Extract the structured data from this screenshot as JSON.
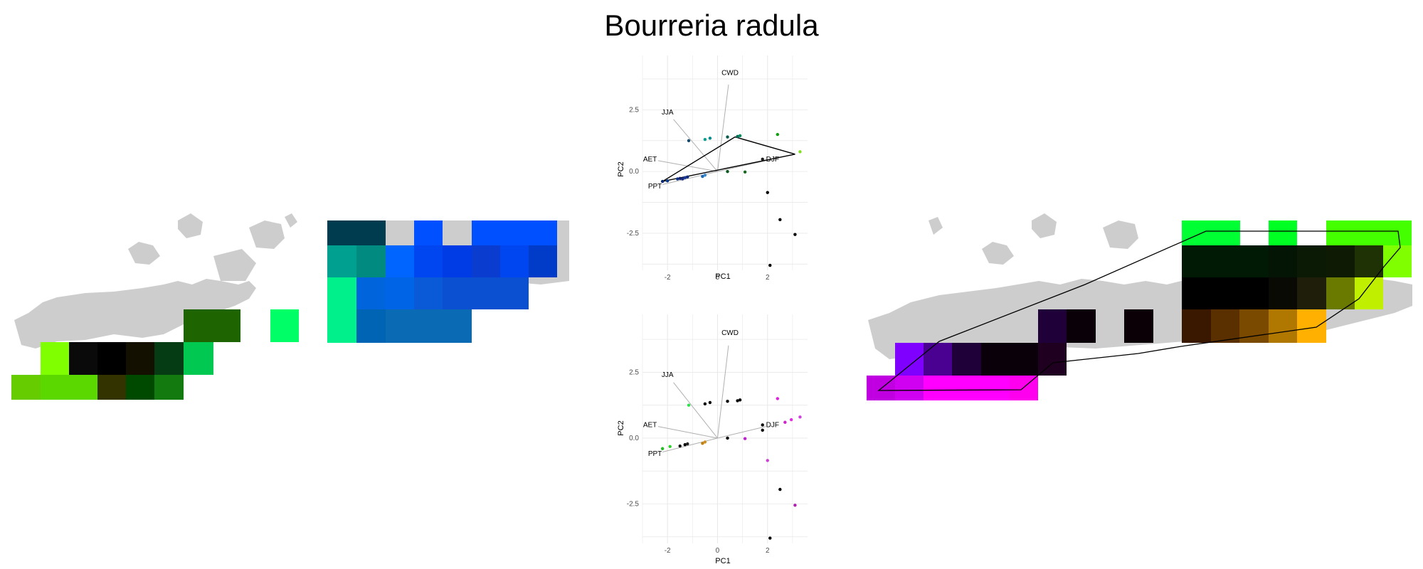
{
  "title": "Bourreria radula",
  "chart_data": [
    {
      "type": "scatter",
      "panel": "pca-top",
      "xlabel": "PC1",
      "ylabel": "PC2",
      "xlim": [
        -3,
        3.6
      ],
      "ylim": [
        -4,
        4.7
      ],
      "x_ticks": [
        -2,
        0,
        2
      ],
      "y_ticks": [
        2.5,
        0.0,
        -2.5
      ],
      "x_tick_labels": [
        "-2",
        "0",
        "2"
      ],
      "y_tick_labels": [
        "2.5",
        "0.0",
        "-2.5"
      ],
      "grid": true,
      "vectors": [
        {
          "label": "CWD",
          "x": 0.5,
          "y": 4.0
        },
        {
          "label": "JJA",
          "x": -2.0,
          "y": 2.4
        },
        {
          "label": "AET",
          "x": -2.7,
          "y": 0.5
        },
        {
          "label": "PPT",
          "x": -2.5,
          "y": -0.6
        },
        {
          "label": "DJF",
          "x": 2.2,
          "y": 0.5
        }
      ],
      "hull": [
        [
          -2.2,
          -0.4
        ],
        [
          0.7,
          1.4
        ],
        [
          3.1,
          0.7
        ]
      ],
      "points": [
        {
          "x": -2.2,
          "y": -0.4,
          "color": "#0a2a7a"
        },
        {
          "x": -2.0,
          "y": -0.38,
          "color": "#0a3a8a"
        },
        {
          "x": -1.6,
          "y": -0.3,
          "color": "#0b2f88"
        },
        {
          "x": -1.5,
          "y": -0.28,
          "color": "#111f6b"
        },
        {
          "x": -1.4,
          "y": -0.3,
          "color": "#152a80"
        },
        {
          "x": -1.3,
          "y": -0.25,
          "color": "#1a3a9a"
        },
        {
          "x": -1.2,
          "y": -0.22,
          "color": "#0e2a7a"
        },
        {
          "x": -0.6,
          "y": -0.2,
          "color": "#1e6ab8"
        },
        {
          "x": -0.5,
          "y": -0.15,
          "color": "#3a8ad0"
        },
        {
          "x": -1.15,
          "y": 1.25,
          "color": "#1a4a6a"
        },
        {
          "x": -0.5,
          "y": 1.3,
          "color": "#0aa090"
        },
        {
          "x": -0.3,
          "y": 1.35,
          "color": "#008a8a"
        },
        {
          "x": 0.4,
          "y": 1.4,
          "color": "#005a4a"
        },
        {
          "x": 0.8,
          "y": 1.42,
          "color": "#006a5a"
        },
        {
          "x": 0.9,
          "y": 1.45,
          "color": "#00875a"
        },
        {
          "x": 0.4,
          "y": 0.0,
          "color": "#0d5a20"
        },
        {
          "x": 1.1,
          "y": -0.02,
          "color": "#166a20"
        },
        {
          "x": 2.4,
          "y": 1.5,
          "color": "#10a010"
        },
        {
          "x": 1.8,
          "y": 0.5,
          "color": "#1a1a1a"
        },
        {
          "x": 3.3,
          "y": 0.8,
          "color": "#7fe020"
        },
        {
          "x": 2.0,
          "y": -0.85,
          "color": "#000000"
        },
        {
          "x": 2.5,
          "y": -1.95,
          "color": "#000000"
        },
        {
          "x": 3.1,
          "y": -2.55,
          "color": "#000000"
        },
        {
          "x": 2.1,
          "y": -3.8,
          "color": "#000000"
        }
      ]
    },
    {
      "type": "scatter",
      "panel": "pca-bottom",
      "xlabel": "PC1",
      "ylabel": "PC2",
      "xlim": [
        -3,
        3.6
      ],
      "ylim": [
        -4,
        4.7
      ],
      "x_ticks": [
        -2,
        0,
        2
      ],
      "y_ticks": [
        2.5,
        0.0,
        -2.5
      ],
      "x_tick_labels": [
        "-2",
        "0",
        "2"
      ],
      "y_tick_labels": [
        "2.5",
        "0.0",
        "-2.5"
      ],
      "grid": true,
      "vectors": [
        {
          "label": "CWD",
          "x": 0.5,
          "y": 4.0
        },
        {
          "label": "JJA",
          "x": -2.0,
          "y": 2.4
        },
        {
          "label": "AET",
          "x": -2.7,
          "y": 0.5
        },
        {
          "label": "PPT",
          "x": -2.5,
          "y": -0.6
        },
        {
          "label": "DJF",
          "x": 2.2,
          "y": 0.5
        }
      ],
      "points": [
        {
          "x": -2.2,
          "y": -0.4,
          "color": "#20c020"
        },
        {
          "x": -1.9,
          "y": -0.32,
          "color": "#30d030"
        },
        {
          "x": -1.5,
          "y": -0.3,
          "color": "#111111"
        },
        {
          "x": -1.3,
          "y": -0.25,
          "color": "#000000"
        },
        {
          "x": -1.2,
          "y": -0.22,
          "color": "#222222"
        },
        {
          "x": -0.6,
          "y": -0.2,
          "color": "#c08010"
        },
        {
          "x": -0.5,
          "y": -0.15,
          "color": "#d09020"
        },
        {
          "x": -1.15,
          "y": 1.25,
          "color": "#30e050"
        },
        {
          "x": -0.5,
          "y": 1.3,
          "color": "#000000"
        },
        {
          "x": -0.3,
          "y": 1.35,
          "color": "#000000"
        },
        {
          "x": 0.4,
          "y": 1.4,
          "color": "#000000"
        },
        {
          "x": 0.8,
          "y": 1.42,
          "color": "#000000"
        },
        {
          "x": 0.9,
          "y": 1.45,
          "color": "#000000"
        },
        {
          "x": 0.4,
          "y": 0.0,
          "color": "#000000"
        },
        {
          "x": 1.1,
          "y": -0.02,
          "color": "#c020d0"
        },
        {
          "x": 2.4,
          "y": 1.5,
          "color": "#e020e0"
        },
        {
          "x": 1.8,
          "y": 0.5,
          "color": "#000000"
        },
        {
          "x": 1.8,
          "y": 0.3,
          "color": "#000000"
        },
        {
          "x": 2.7,
          "y": 0.6,
          "color": "#d020d0"
        },
        {
          "x": 2.95,
          "y": 0.7,
          "color": "#e030e0"
        },
        {
          "x": 3.3,
          "y": 0.8,
          "color": "#d040e0"
        },
        {
          "x": 2.0,
          "y": -0.85,
          "color": "#d040d0"
        },
        {
          "x": 2.5,
          "y": -1.95,
          "color": "#000000"
        },
        {
          "x": 3.1,
          "y": -2.55,
          "color": "#b020b0"
        },
        {
          "x": 2.1,
          "y": -3.8,
          "color": "#000000"
        }
      ]
    }
  ],
  "colors": {
    "land": "#cdcdcd",
    "grid": "#e8e8e8",
    "vector": "#b0b0b0"
  },
  "maps": {
    "left_cells": [
      "#66cc00",
      "#80ff00",
      "#5ad800",
      "#0a0a0a",
      "#000000",
      "#141000",
      "#053c14",
      "#00c850",
      "#1e6400",
      "#00ff66",
      "#003c44",
      "#00a090",
      "#00f08c"
    ],
    "middle_cells": [
      "#0050ff",
      "#0a3cdc",
      "#0064c8",
      "#0a78d2"
    ],
    "right_cells": [
      "#00ff33",
      "#7fff00",
      "#001a05",
      "#000000",
      "#6a7a00",
      "#c0f000",
      "#3a1800",
      "#7a4a00",
      "#ffb000",
      "#8000ff",
      "#200038",
      "#0a000a",
      "#ff00ff",
      "#c000e0"
    ]
  }
}
